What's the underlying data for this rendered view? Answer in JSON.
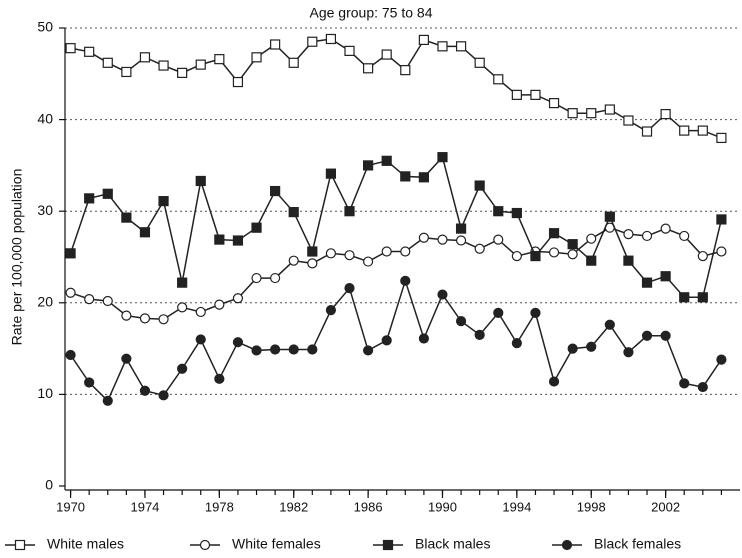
{
  "chart_data": {
    "type": "line",
    "title": "Age group: 75 to 84",
    "ylabel": "Rate per 100,000 population",
    "x": [
      1970,
      1971,
      1972,
      1973,
      1974,
      1975,
      1976,
      1977,
      1978,
      1979,
      1980,
      1981,
      1982,
      1983,
      1984,
      1985,
      1986,
      1987,
      1988,
      1989,
      1990,
      1991,
      1992,
      1993,
      1994,
      1995,
      1996,
      1997,
      1998,
      1999,
      2000,
      2001,
      2002,
      2003,
      2004,
      2005
    ],
    "xlim": [
      1969.7,
      2006
    ],
    "xticks": [
      1970,
      1974,
      1978,
      1982,
      1986,
      1990,
      1994,
      1998,
      2002
    ],
    "ylim": [
      0,
      50
    ],
    "yticks": [
      0,
      10,
      20,
      30,
      40,
      50
    ],
    "grid": true,
    "series": [
      {
        "name": "White males",
        "color": "#222222",
        "marker": "open-square",
        "values": [
          47.8,
          47.4,
          46.2,
          45.2,
          46.8,
          45.9,
          45.1,
          46.0,
          46.6,
          44.1,
          46.8,
          48.2,
          46.2,
          48.5,
          48.8,
          47.5,
          45.6,
          47.1,
          45.4,
          48.7,
          48.0,
          48.0,
          46.2,
          44.4,
          42.7,
          42.7,
          41.8,
          40.7,
          40.7,
          41.1,
          39.9,
          38.7,
          40.6,
          38.8,
          38.8,
          38.0
        ]
      },
      {
        "name": "White females",
        "color": "#222222",
        "marker": "open-circle",
        "values": [
          21.1,
          20.4,
          20.2,
          18.6,
          18.3,
          18.2,
          19.5,
          19.0,
          19.8,
          20.5,
          22.7,
          22.7,
          24.6,
          24.3,
          25.4,
          25.2,
          24.5,
          25.6,
          25.6,
          27.1,
          26.9,
          26.8,
          25.9,
          26.9,
          25.1,
          25.6,
          25.5,
          25.3,
          27.0,
          28.2,
          27.5,
          27.3,
          28.1,
          27.3,
          25.1,
          25.6
        ]
      },
      {
        "name": "Black males",
        "color": "#222222",
        "marker": "filled-square",
        "values": [
          25.4,
          31.4,
          31.9,
          29.3,
          27.7,
          31.1,
          22.2,
          33.3,
          26.9,
          26.8,
          28.2,
          32.2,
          29.9,
          25.6,
          34.1,
          30.0,
          35.0,
          35.5,
          33.8,
          33.7,
          35.9,
          28.1,
          32.8,
          30.0,
          29.8,
          25.1,
          27.6,
          26.4,
          24.6,
          29.4,
          24.6,
          22.2,
          22.9,
          20.6,
          20.6,
          29.1
        ]
      },
      {
        "name": "Black females",
        "color": "#222222",
        "marker": "filled-circle",
        "values": [
          14.3,
          11.3,
          9.3,
          13.9,
          10.4,
          9.9,
          12.8,
          16.0,
          11.7,
          15.7,
          14.8,
          14.9,
          14.9,
          14.9,
          19.2,
          21.6,
          14.8,
          15.9,
          22.4,
          16.1,
          20.9,
          18.0,
          16.5,
          18.9,
          15.6,
          18.9,
          11.4,
          15.0,
          15.2,
          17.6,
          14.6,
          16.4,
          16.4,
          11.2,
          10.8,
          13.8
        ]
      }
    ]
  }
}
